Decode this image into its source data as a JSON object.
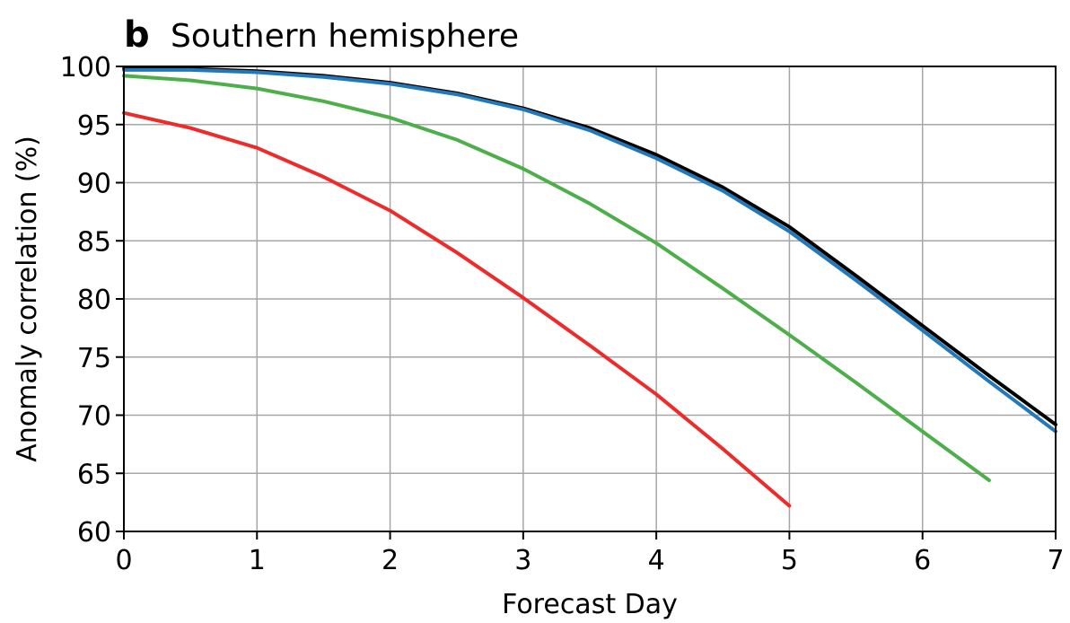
{
  "chart_data": {
    "type": "line",
    "panel_letter": "b",
    "title": "Southern hemisphere",
    "xlabel": "Forecast Day",
    "ylabel": "Anomaly correlation (%)",
    "xlim": [
      0,
      7
    ],
    "ylim": [
      60,
      100
    ],
    "x_ticks": [
      0,
      1,
      2,
      3,
      4,
      5,
      6,
      7
    ],
    "y_ticks": [
      60,
      65,
      70,
      75,
      80,
      85,
      90,
      95,
      100
    ],
    "grid": true,
    "series": [
      {
        "color": "#000000",
        "x": [
          0,
          0.5,
          1,
          1.5,
          2,
          2.5,
          3,
          3.5,
          4,
          4.5,
          5,
          5.5,
          6,
          6.5,
          7
        ],
        "values": [
          99.8,
          99.8,
          99.6,
          99.2,
          98.6,
          97.7,
          96.4,
          94.7,
          92.4,
          89.6,
          86.2,
          82.0,
          77.7,
          73.4,
          69.2
        ]
      },
      {
        "color": "#2278b8",
        "x": [
          0,
          0.5,
          1,
          1.5,
          2,
          2.5,
          3,
          3.5,
          4,
          4.5,
          5,
          5.5,
          6,
          6.5,
          7
        ],
        "values": [
          99.7,
          99.7,
          99.5,
          99.1,
          98.5,
          97.6,
          96.3,
          94.5,
          92.1,
          89.3,
          85.8,
          81.6,
          77.3,
          72.9,
          68.6
        ]
      },
      {
        "color": "#4caf4a",
        "x": [
          0,
          0.5,
          1,
          1.5,
          2,
          2.5,
          3,
          3.5,
          4,
          4.5,
          5,
          5.5,
          6,
          6.5
        ],
        "values": [
          99.2,
          98.8,
          98.1,
          97.0,
          95.6,
          93.7,
          91.2,
          88.2,
          84.8,
          80.9,
          76.9,
          72.8,
          68.6,
          64.4
        ]
      },
      {
        "color": "#ee2b2b",
        "x": [
          0,
          0.5,
          1,
          1.5,
          2,
          2.5,
          3,
          3.5,
          4,
          4.5,
          5
        ],
        "values": [
          96.0,
          94.7,
          93.0,
          90.5,
          87.6,
          84.0,
          80.1,
          76.0,
          71.8,
          67.1,
          62.2
        ]
      }
    ]
  }
}
